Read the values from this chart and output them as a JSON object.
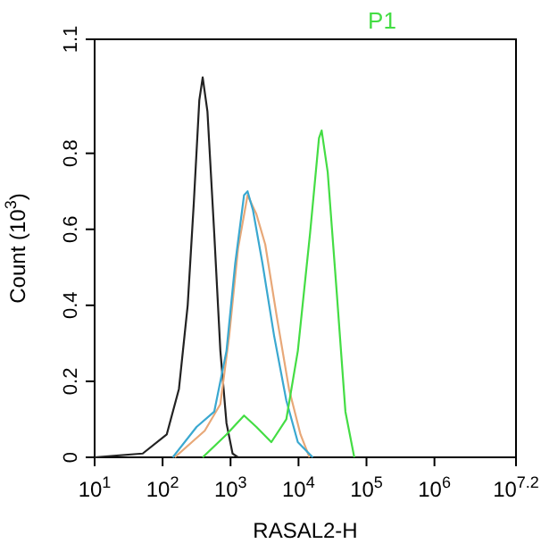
{
  "chart_data": {
    "type": "line",
    "xlabel": "RASAL2-H",
    "ylabel": "Count (10$^{3}$)",
    "annotations": [
      "P1"
    ],
    "log": "x",
    "xlim": [
      10,
      15848932
    ],
    "ylim": [
      0,
      1.1
    ],
    "xticks": [
      {
        "value": 10,
        "label": "10$^{1}$"
      },
      {
        "value": 100,
        "label": "10$^{2}$"
      },
      {
        "value": 1000,
        "label": "10$^{3}$"
      },
      {
        "value": 10000,
        "label": "10$^{4}$"
      },
      {
        "value": 100000,
        "label": "10$^{5}$"
      },
      {
        "value": 1000000,
        "label": "10$^{6}$"
      },
      {
        "value": 15848932,
        "label": "10$^{7.2}$"
      }
    ],
    "yticks": [
      0,
      0.2,
      0.4,
      0.6,
      0.8,
      1.1
    ],
    "series": [
      {
        "color": "#222222",
        "x": [
          10,
          51,
          115,
          174,
          234,
          288,
          347,
          389,
          457,
          575,
          708,
          871,
          1070,
          1290
        ],
        "values": [
          0,
          0.01,
          0.06,
          0.18,
          0.4,
          0.67,
          0.94,
          1.0,
          0.91,
          0.59,
          0.28,
          0.09,
          0.01,
          0
        ]
      },
      {
        "color": "#e8a878",
        "x": [
          151,
          417,
          708,
          955,
          1290,
          1780,
          2400,
          3240,
          4790,
          7240,
          10700,
          14500
        ],
        "values": [
          0,
          0.07,
          0.14,
          0.32,
          0.55,
          0.69,
          0.64,
          0.56,
          0.37,
          0.18,
          0.06,
          0
        ]
      },
      {
        "color": "#3aa8d0",
        "x": [
          141,
          316,
          575,
          871,
          1170,
          1580,
          1780,
          2140,
          2950,
          4370,
          6610,
          9770,
          16200
        ],
        "values": [
          0,
          0.08,
          0.12,
          0.28,
          0.51,
          0.69,
          0.7,
          0.65,
          0.51,
          0.32,
          0.15,
          0.04,
          0
        ]
      },
      {
        "color": "#44dd44",
        "x": [
          389,
          871,
          1580,
          2400,
          3980,
          6610,
          9770,
          14800,
          20000,
          21900,
          26900,
          36300,
          49000,
          66100
        ],
        "values": [
          0,
          0.06,
          0.11,
          0.08,
          0.04,
          0.1,
          0.28,
          0.59,
          0.84,
          0.86,
          0.75,
          0.44,
          0.12,
          0
        ]
      }
    ]
  }
}
